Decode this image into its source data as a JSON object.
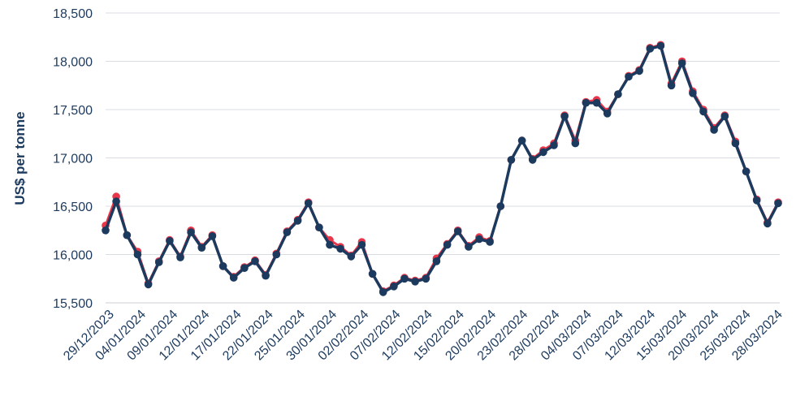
{
  "chart_data": {
    "type": "line",
    "ylabel": "US$ per tonne",
    "ylim": [
      15500,
      18500
    ],
    "yticks": [
      15500,
      16000,
      16500,
      17000,
      17500,
      18000,
      18500
    ],
    "ytick_labels": [
      "15,500",
      "16,000",
      "16,500",
      "17,000",
      "17,500",
      "18,000",
      "18,500"
    ],
    "xtick_labels": [
      "29/12/2023",
      "04/01/2024",
      "09/01/2024",
      "12/01/2024",
      "17/01/2024",
      "22/01/2024",
      "25/01/2024",
      "30/01/2024",
      "02/02/2024",
      "07/02/2024",
      "12/02/2024",
      "15/02/2024",
      "20/02/2024",
      "23/02/2024",
      "28/02/2024",
      "04/03/2024",
      "07/03/2024",
      "12/03/2024",
      "15/03/2024",
      "20/03/2024",
      "25/03/2024",
      "28/03/2024"
    ],
    "grid": "horizontal",
    "series": [
      {
        "color": "#e8364a",
        "values": [
          16300,
          16600,
          16200,
          16030,
          15700,
          15930,
          16150,
          15980,
          16250,
          16080,
          16200,
          15880,
          15770,
          15870,
          15940,
          15790,
          16010,
          16240,
          16360,
          16540,
          16280,
          16150,
          16080,
          15990,
          16130,
          15800,
          15620,
          15680,
          15760,
          15730,
          15760,
          15960,
          16110,
          16250,
          16090,
          16180,
          16140,
          16500,
          16980,
          17180,
          16990,
          17080,
          17150,
          17440,
          17180,
          17580,
          17600,
          17480,
          17660,
          17850,
          17910,
          18140,
          18170,
          17770,
          18000,
          17690,
          17500,
          17310,
          17440,
          17170,
          16860,
          16570,
          16330,
          16540
        ]
      },
      {
        "color": "#1c3a5e",
        "values": [
          16250,
          16550,
          16200,
          16000,
          15690,
          15920,
          16140,
          15970,
          16230,
          16070,
          16190,
          15880,
          15760,
          15860,
          15930,
          15780,
          16000,
          16230,
          16350,
          16530,
          16280,
          16100,
          16060,
          15980,
          16100,
          15800,
          15610,
          15670,
          15750,
          15720,
          15750,
          15930,
          16100,
          16240,
          16080,
          16160,
          16130,
          16500,
          16980,
          17180,
          16980,
          17060,
          17130,
          17430,
          17150,
          17570,
          17570,
          17460,
          17660,
          17840,
          17900,
          18130,
          18160,
          17750,
          17980,
          17670,
          17480,
          17290,
          17430,
          17150,
          16860,
          16560,
          16320,
          16530
        ]
      }
    ]
  }
}
